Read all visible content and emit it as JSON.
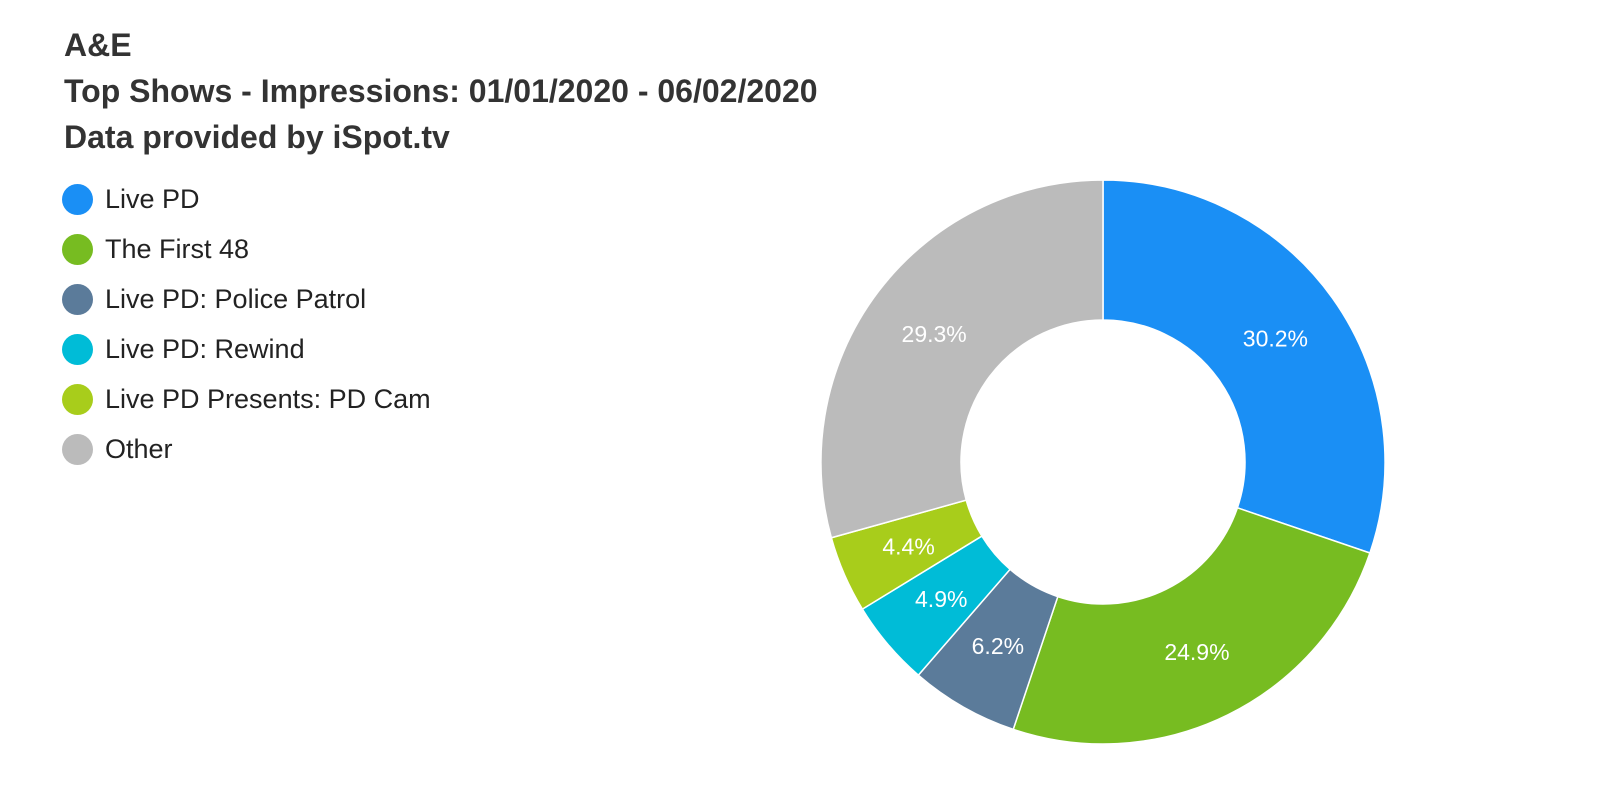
{
  "chart_data": {
    "type": "pie",
    "title": "A&E",
    "subtitle": "Top Shows - Impressions: 01/01/2020 - 06/02/2020",
    "source": "Data provided by iSpot.tv",
    "legend_position": "top-left",
    "categories": [
      "Live PD",
      "The First 48",
      "Live PD: Police Patrol",
      "Live PD: Rewind",
      "Live PD Presents: PD Cam",
      "Other"
    ],
    "values": [
      30.2,
      24.9,
      6.2,
      4.9,
      4.4,
      29.3
    ],
    "labels": [
      "30.2%",
      "24.9%",
      "6.2%",
      "4.9%",
      "4.4%",
      "29.3%"
    ],
    "colors": [
      "#1a8ff5",
      "#77bc21",
      "#5b7b9a",
      "#00bcd7",
      "#a8cd1b",
      "#bbbbbb"
    ]
  }
}
